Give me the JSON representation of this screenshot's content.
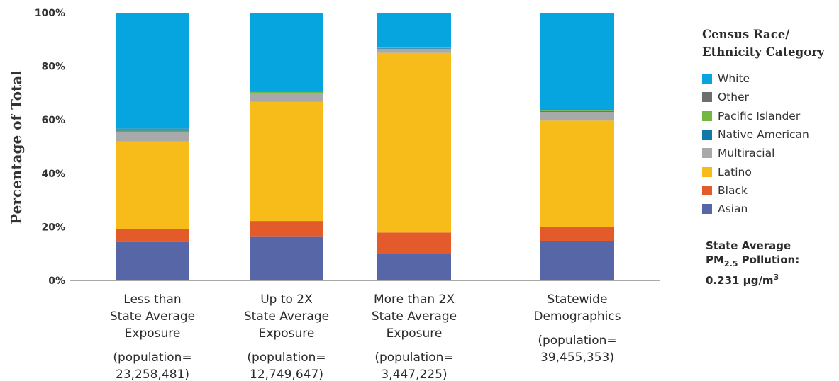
{
  "chart_data": {
    "type": "bar",
    "stacked": true,
    "ylabel": "Percentage of Total",
    "ylim": [
      0,
      100
    ],
    "yticks": [
      "0%",
      "20%",
      "40%",
      "60%",
      "80%",
      "100%"
    ],
    "categories": [
      {
        "lines": [
          "Less than",
          "State Average",
          "Exposure"
        ],
        "population": [
          "(population=",
          "23,258,481)"
        ]
      },
      {
        "lines": [
          "Up to 2X",
          "State Average",
          "Exposure"
        ],
        "population": [
          "(population=",
          "12,749,647)"
        ]
      },
      {
        "lines": [
          "More than 2X",
          "State Average",
          "Exposure"
        ],
        "population": [
          "(population=",
          "3,447,225)"
        ]
      },
      {
        "lines": [
          "Statewide",
          "Demographics"
        ],
        "population": [
          "(population=",
          "39,455,353)"
        ]
      }
    ],
    "series": [
      {
        "name": "Asian",
        "color": "#5766a6",
        "values": [
          14.3,
          16.5,
          9.8,
          14.8
        ]
      },
      {
        "name": "Black",
        "color": "#e35b2b",
        "values": [
          4.9,
          5.7,
          8.1,
          5.2
        ]
      },
      {
        "name": "Latino",
        "color": "#f8bc1a",
        "values": [
          32.7,
          44.5,
          67.1,
          39.7
        ]
      },
      {
        "name": "Multiracial",
        "color": "#a7a9ab",
        "values": [
          3.8,
          3.2,
          1.6,
          3.3
        ]
      },
      {
        "name": "Native American",
        "color": "#1278a8",
        "values": [
          0.3,
          0.2,
          0.2,
          0.3
        ]
      },
      {
        "name": "Pacific Islander",
        "color": "#72b843",
        "values": [
          0.4,
          0.4,
          0.3,
          0.4
        ]
      },
      {
        "name": "Other",
        "color": "#6d6e70",
        "values": [
          0.3,
          0.3,
          0.2,
          0.3
        ]
      },
      {
        "name": "White",
        "color": "#07a5df",
        "values": [
          43.3,
          29.2,
          12.7,
          36.0
        ]
      }
    ],
    "legend": {
      "title_lines": [
        "Census Race/",
        "Ethnicity Category"
      ],
      "order": [
        "White",
        "Other",
        "Pacific Islander",
        "Native American",
        "Multiracial",
        "Latino",
        "Black",
        "Asian"
      ],
      "placement": "right"
    }
  },
  "note": {
    "line1": "State Average",
    "line2_prefix": "PM",
    "line2_sub": "2.5",
    "line2_suffix": " Pollution:",
    "line3_value": "0.231 μg/m",
    "line3_sup": "3"
  }
}
